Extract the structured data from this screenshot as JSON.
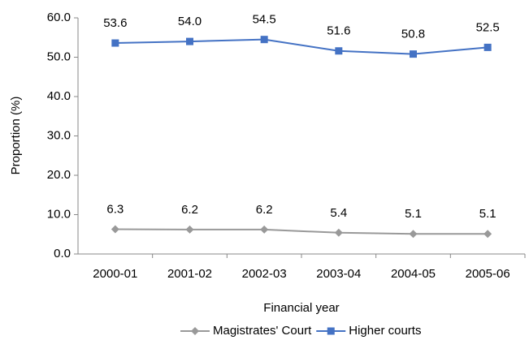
{
  "chart_data": {
    "type": "line",
    "x_label": "Financial year",
    "y_label": "Proportion (%)",
    "categories": [
      "2000-01",
      "2001-02",
      "2002-03",
      "2003-04",
      "2004-05",
      "2005-06"
    ],
    "series": [
      {
        "name": "Magistrates' Court",
        "color": "#999999",
        "marker": "diamond",
        "values": [
          6.3,
          6.2,
          6.2,
          5.4,
          5.1,
          5.1
        ],
        "value_labels": [
          "6.3",
          "6.2",
          "6.2",
          "5.4",
          "5.1",
          "5.1"
        ]
      },
      {
        "name": "Higher courts",
        "color": "#4472c4",
        "marker": "square",
        "values": [
          53.6,
          54.0,
          54.5,
          51.6,
          50.8,
          52.5
        ],
        "value_labels": [
          "53.6",
          "54.0",
          "54.5",
          "51.6",
          "50.8",
          "52.5"
        ]
      }
    ],
    "ylim": [
      0,
      60
    ],
    "yticks": [
      {
        "value": 0,
        "label": "0.0"
      },
      {
        "value": 10,
        "label": "10.0"
      },
      {
        "value": 20,
        "label": "20.0"
      },
      {
        "value": 30,
        "label": "30.0"
      },
      {
        "value": 40,
        "label": "40.0"
      },
      {
        "value": 50,
        "label": "50.0"
      },
      {
        "value": 60,
        "label": "60.0"
      }
    ],
    "grid": false,
    "legend": "bottom"
  }
}
